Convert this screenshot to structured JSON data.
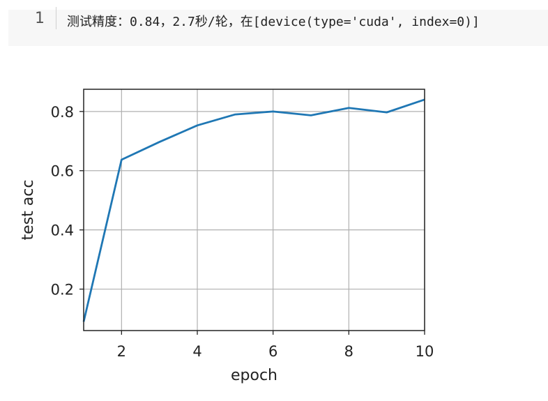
{
  "cell": {
    "line_number": "1",
    "output_text": "测试精度：0.84，2.7秒/轮，在[device(type='cuda', index=0)]"
  },
  "chart_data": {
    "type": "line",
    "title": "",
    "xlabel": "epoch",
    "ylabel": "test acc",
    "xlim": [
      1,
      10
    ],
    "ylim": [
      0.06,
      0.875
    ],
    "xticks": [
      2,
      4,
      6,
      8,
      10
    ],
    "yticks": [
      0.2,
      0.4,
      0.6,
      0.8
    ],
    "xtick_labels": [
      "2",
      "4",
      "6",
      "8",
      "10"
    ],
    "ytick_labels": [
      "0.2",
      "0.4",
      "0.6",
      "0.8"
    ],
    "grid": true,
    "series": [
      {
        "color": "#1f77b4",
        "x": [
          1,
          2,
          3,
          4,
          5,
          6,
          7,
          8,
          9,
          10
        ],
        "y": [
          0.09,
          0.637,
          0.697,
          0.753,
          0.79,
          0.8,
          0.787,
          0.812,
          0.797,
          0.84
        ]
      }
    ]
  }
}
